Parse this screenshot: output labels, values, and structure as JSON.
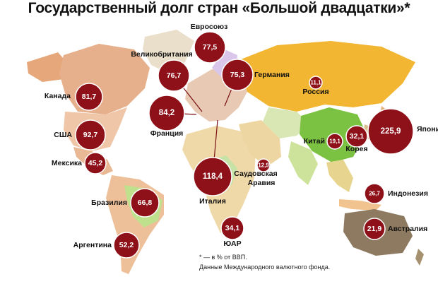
{
  "title": "Государственный долг стран «Большой двадцатки»*",
  "footnote": "* — в % от ВВП.",
  "source": "Данные Международного валютного фонда.",
  "colors": {
    "bubble": "#8e1018",
    "bubble_stroke": "#ffffff",
    "ocean": "#ffffff",
    "land_default": "#e9dcc4",
    "russia": "#f2b633",
    "china": "#7cc242",
    "australia": "#8e7a60"
  },
  "countries": [
    {
      "id": "eu",
      "label": "Евросоюз",
      "value": "77,5"
    },
    {
      "id": "uk",
      "label": "Великобритания",
      "value": "76,7"
    },
    {
      "id": "germany",
      "label": "Германия",
      "value": "75,3"
    },
    {
      "id": "france",
      "label": "Франция",
      "value": "84,2"
    },
    {
      "id": "russia",
      "label": "Россия",
      "value": "11,1"
    },
    {
      "id": "canada",
      "label": "Канада",
      "value": "81,7"
    },
    {
      "id": "usa",
      "label": "США",
      "value": "92,7"
    },
    {
      "id": "mexico",
      "label": "Мексика",
      "value": "45,2"
    },
    {
      "id": "italy",
      "label": "Италия",
      "value": "118,4"
    },
    {
      "id": "saudi",
      "label": "Саудовская Аравия",
      "value": "12,9"
    },
    {
      "id": "china",
      "label": "Китай",
      "value": "19,1"
    },
    {
      "id": "korea",
      "label": "Корея",
      "value": "32,1"
    },
    {
      "id": "japan",
      "label": "Япония",
      "value": "225,9"
    },
    {
      "id": "indonesia",
      "label": "Индонезия",
      "value": "26,7"
    },
    {
      "id": "australia",
      "label": "Австралия",
      "value": "21,9"
    },
    {
      "id": "brazil",
      "label": "Бразилия",
      "value": "66,8"
    },
    {
      "id": "argentina",
      "label": "Аргентина",
      "value": "52,2"
    },
    {
      "id": "sar",
      "label": "ЮАР",
      "value": "34,1"
    }
  ]
}
